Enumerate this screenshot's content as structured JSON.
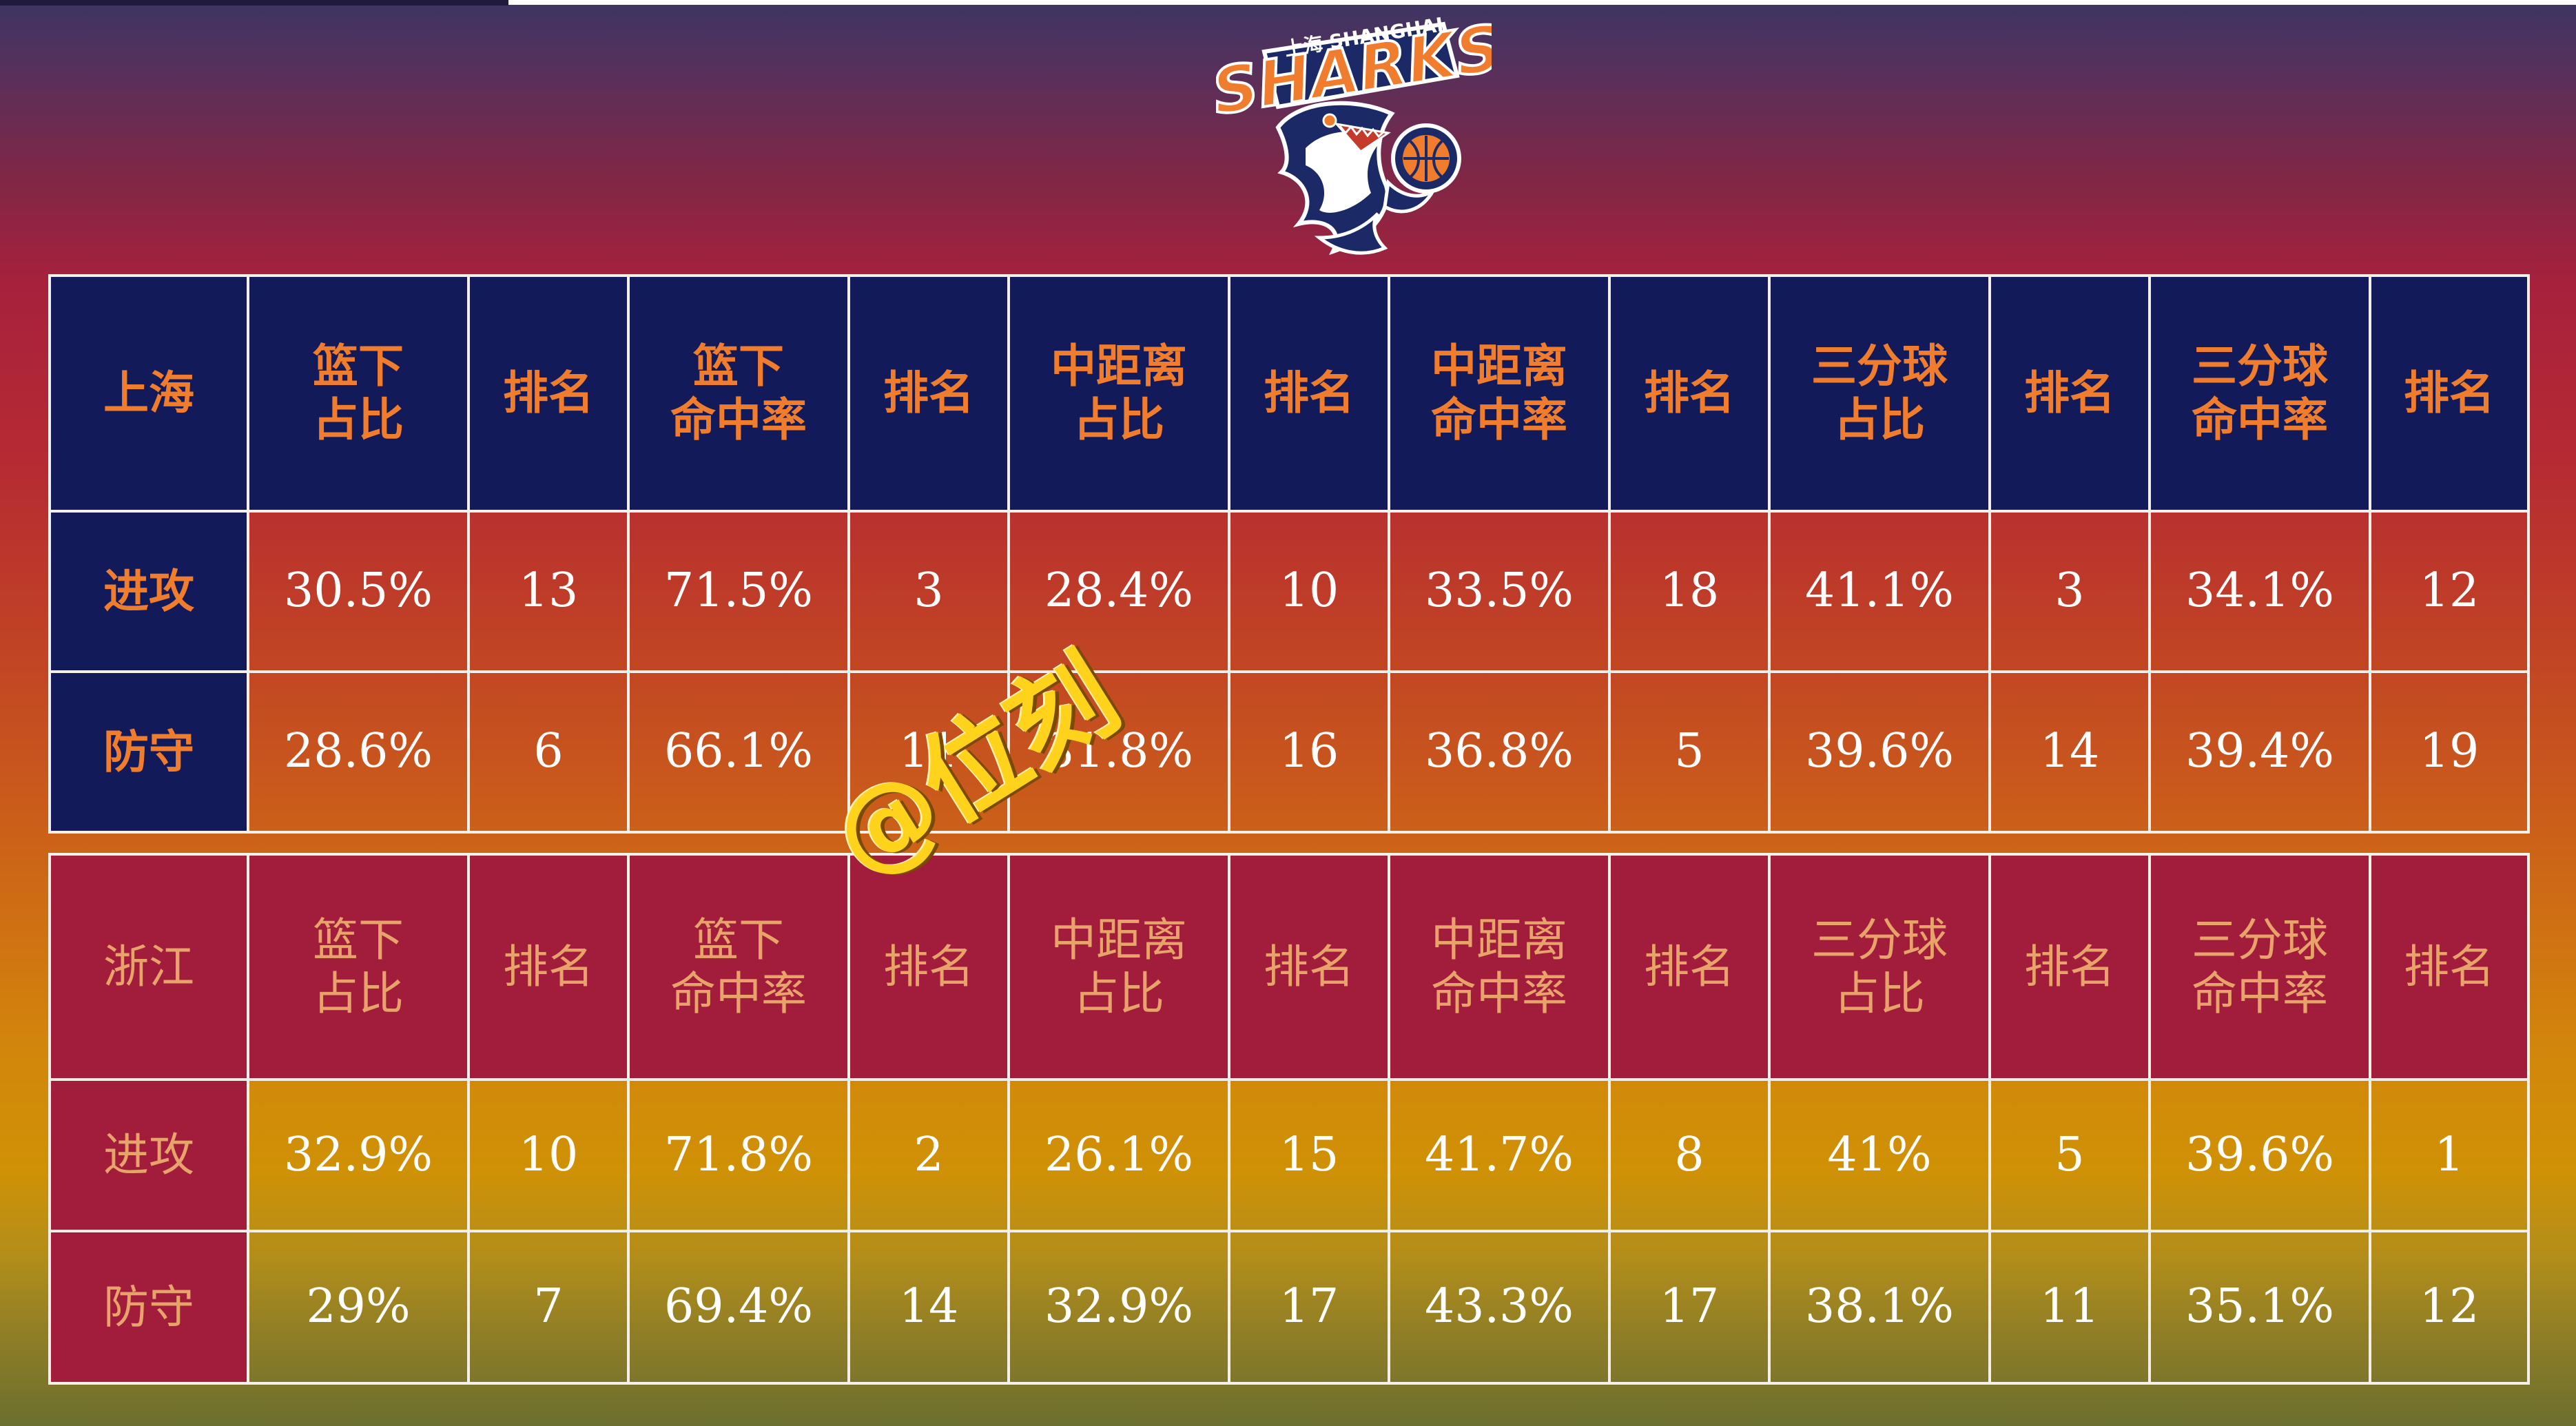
{
  "logo": {
    "lettering": "上海 SHANGHAI SHARKS",
    "icon": "sharks-logo"
  },
  "watermark": "@位刻",
  "tables": [
    {
      "team": "上海",
      "headers": [
        [
          "篮下",
          "占比"
        ],
        [
          "排名"
        ],
        [
          "篮下",
          "命中率"
        ],
        [
          "排名"
        ],
        [
          "中距离",
          "占比"
        ],
        [
          "排名"
        ],
        [
          "中距离",
          "命中率"
        ],
        [
          "排名"
        ],
        [
          "三分球",
          "占比"
        ],
        [
          "排名"
        ],
        [
          "三分球",
          "命中率"
        ],
        [
          "排名"
        ]
      ],
      "rows": [
        {
          "label": "进攻",
          "values": [
            "30.5%",
            "13",
            "71.5%",
            "3",
            "28.4%",
            "10",
            "33.5%",
            "18",
            "41.1%",
            "3",
            "34.1%",
            "12"
          ]
        },
        {
          "label": "防守",
          "values": [
            "28.6%",
            "6",
            "66.1%",
            "11",
            "31.8%",
            "16",
            "36.8%",
            "5",
            "39.6%",
            "14",
            "39.4%",
            "19"
          ]
        }
      ]
    },
    {
      "team": "浙江",
      "headers": [
        [
          "篮下",
          "占比"
        ],
        [
          "排名"
        ],
        [
          "篮下",
          "命中率"
        ],
        [
          "排名"
        ],
        [
          "中距离",
          "占比"
        ],
        [
          "排名"
        ],
        [
          "中距离",
          "命中率"
        ],
        [
          "排名"
        ],
        [
          "三分球",
          "占比"
        ],
        [
          "排名"
        ],
        [
          "三分球",
          "命中率"
        ],
        [
          "排名"
        ]
      ],
      "rows": [
        {
          "label": "进攻",
          "values": [
            "32.9%",
            "10",
            "71.8%",
            "2",
            "26.1%",
            "15",
            "41.7%",
            "8",
            "41%",
            "5",
            "39.6%",
            "1"
          ]
        },
        {
          "label": "防守",
          "values": [
            "29%",
            "7",
            "69.4%",
            "14",
            "32.9%",
            "17",
            "43.3%",
            "17",
            "38.1%",
            "11",
            "35.1%",
            "12"
          ]
        }
      ]
    }
  ],
  "colors": {
    "shanghai_header_bg": "#121a5a",
    "shanghai_header_text": "#f07c2e",
    "zhejiang_header_bg": "#a21d3b",
    "zhejiang_header_text": "#e7a36a",
    "value_text": "#ffffff",
    "grid_line": "#f4efe8",
    "watermark": "#ffd21c"
  }
}
